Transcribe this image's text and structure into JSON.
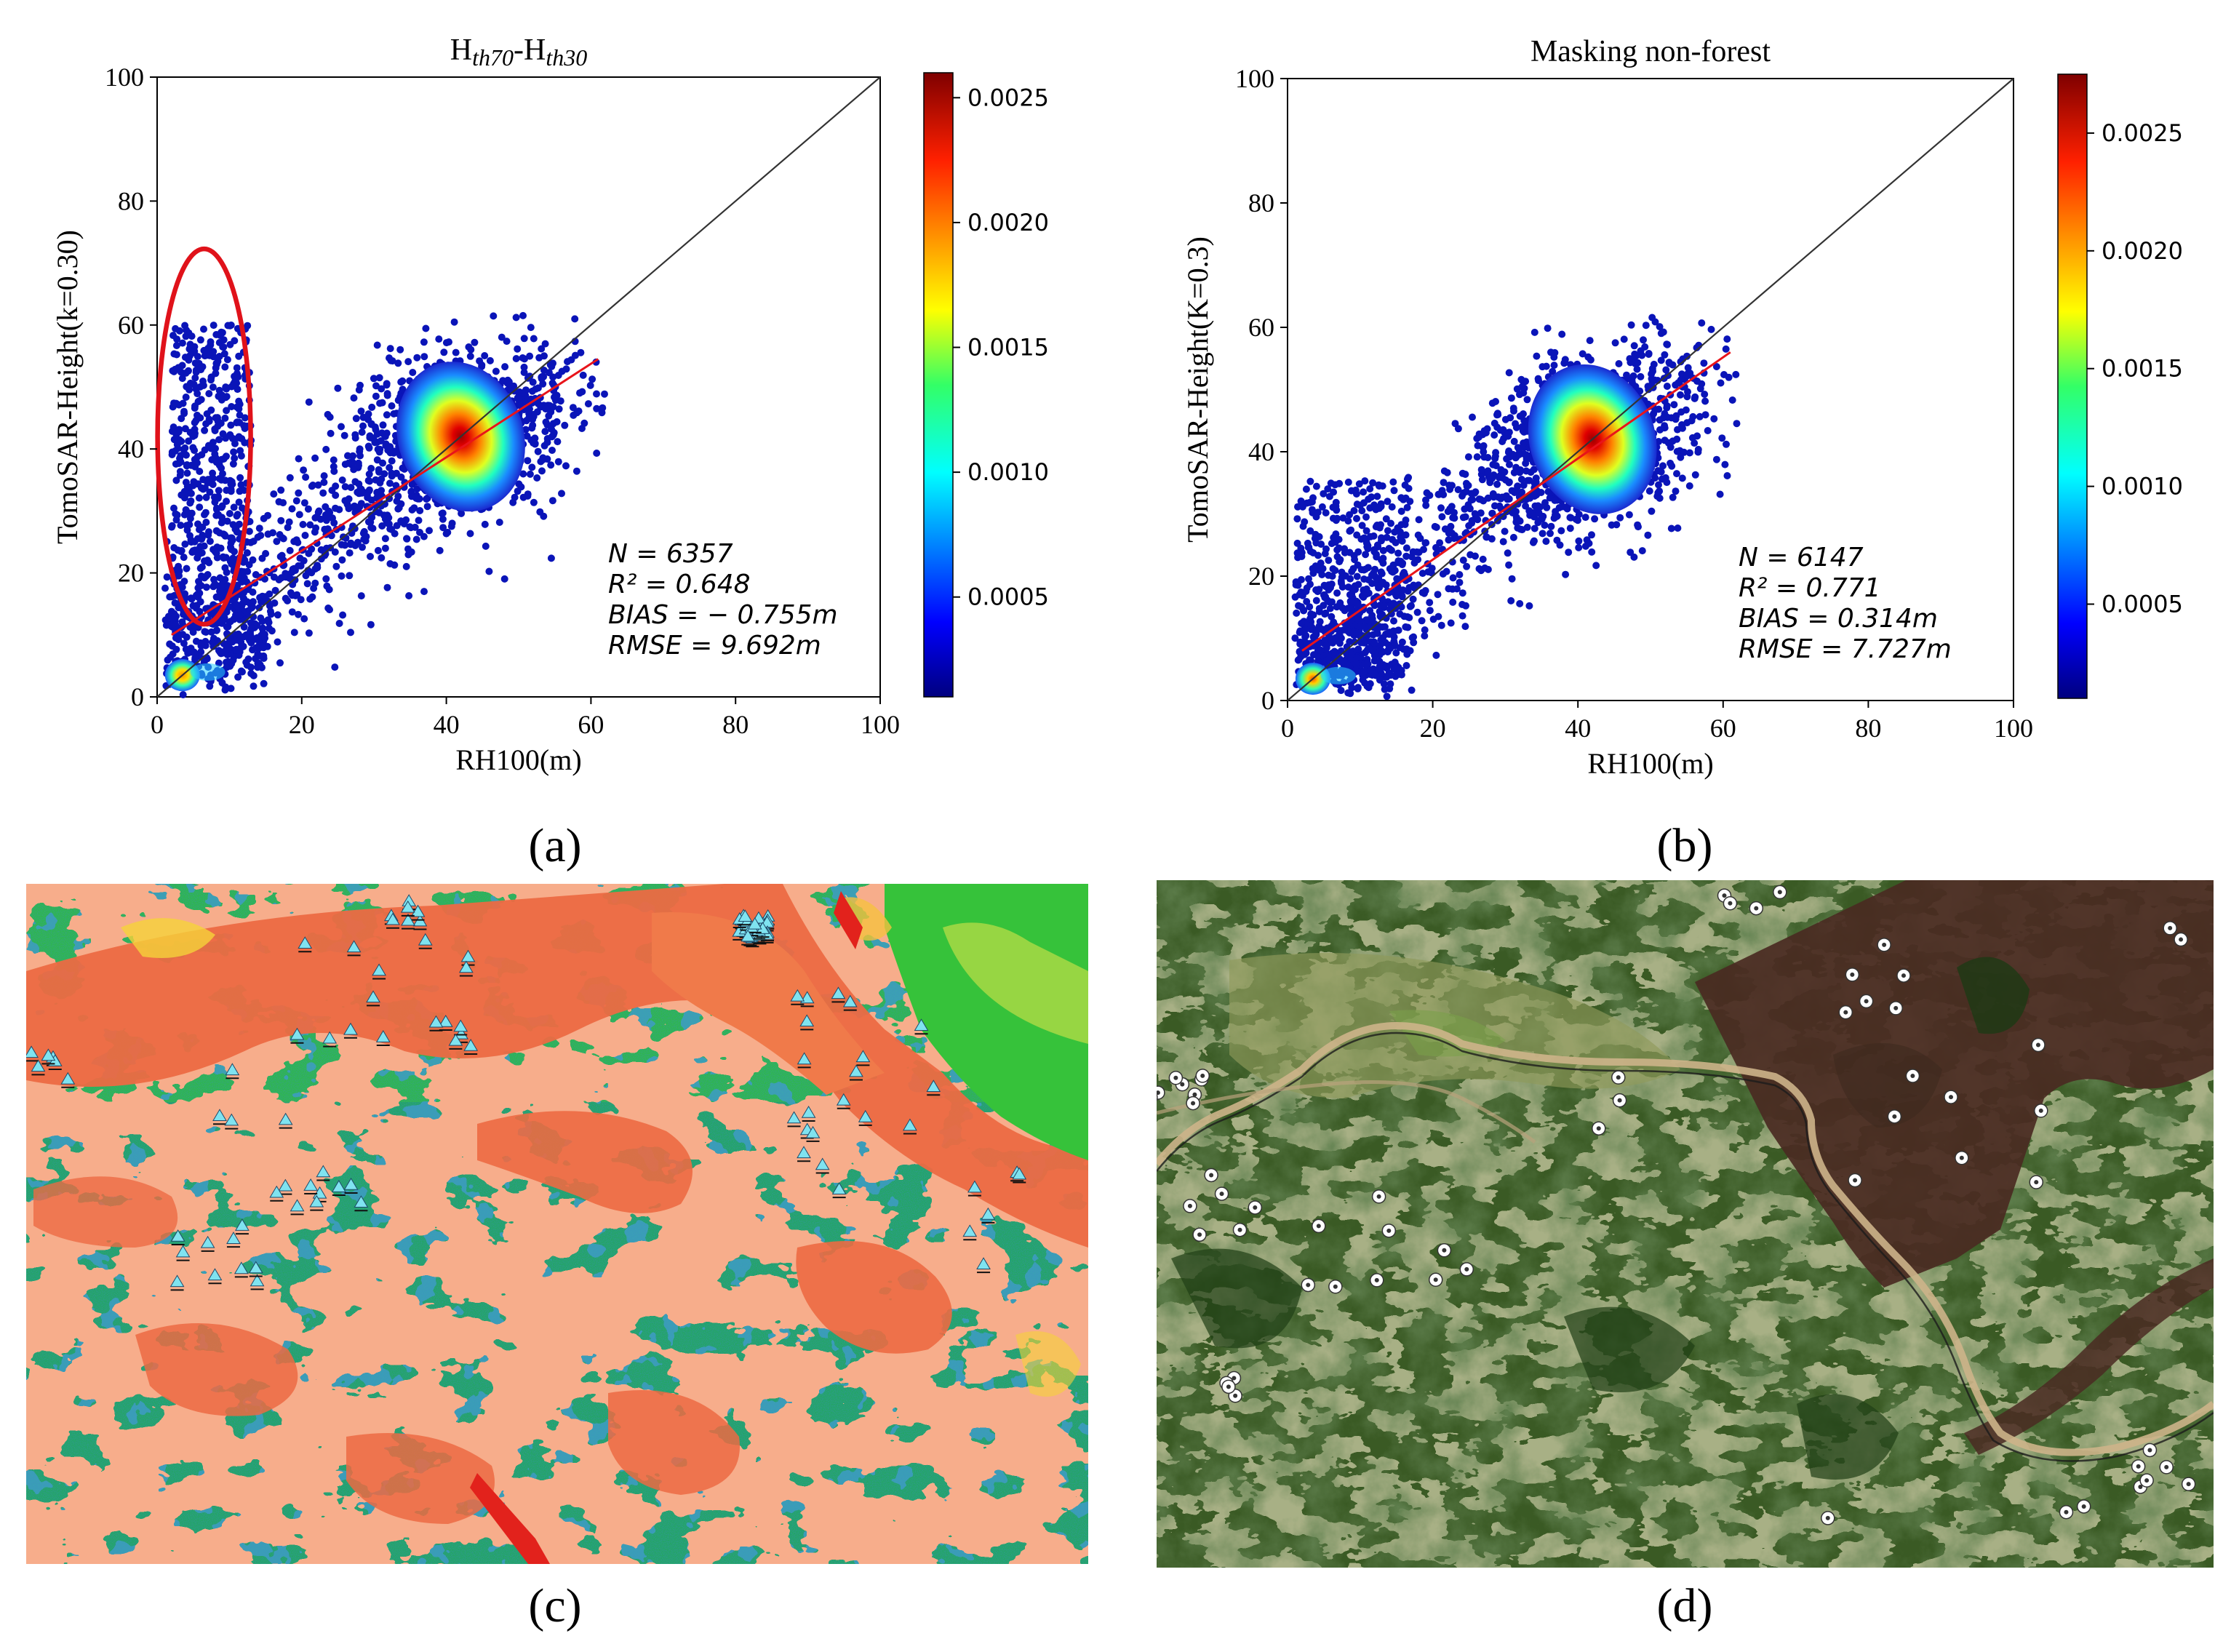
{
  "figure": {
    "sublabels": [
      "(a)",
      "(b)",
      "(c)",
      "(d)"
    ]
  },
  "chart_data": [
    {
      "type": "scatter",
      "panel": "a",
      "title": "Hth70-Hth30",
      "title_main_1": "H",
      "title_sub_1": "th70",
      "title_dash": "-H",
      "title_sub_2": "th30",
      "xlabel": "RH100(m)",
      "ylabel": "TomoSAR-Height(k=0.30)",
      "xlim": [
        0,
        100
      ],
      "ylim": [
        0,
        100
      ],
      "xticks": [
        "0",
        "20",
        "40",
        "60",
        "80",
        "100"
      ],
      "yticks": [
        "0",
        "20",
        "40",
        "60",
        "80",
        "100"
      ],
      "colorbar_ticks": [
        "0.0005",
        "0.0010",
        "0.0015",
        "0.0020",
        "0.0025"
      ],
      "colorbar_values": [
        0.0005,
        0.001,
        0.0015,
        0.002,
        0.0025
      ],
      "colorbar_range": [
        0.0001,
        0.0026
      ],
      "cluster_center": [
        42,
        42
      ],
      "fit_line": [
        [
          2,
          10
        ],
        [
          61,
          54.5
        ]
      ],
      "one_to_one": [
        [
          0,
          0
        ],
        [
          100,
          100
        ]
      ],
      "has_outlier_ellipse": true,
      "stats": {
        "n": "N = 6357",
        "r2": "R² = 0.648",
        "bias": "BIAS = − 0.755m",
        "rmse": "RMSE = 9.692m"
      }
    },
    {
      "type": "scatter",
      "panel": "b",
      "title": "Masking non-forest",
      "xlabel": "RH100(m)",
      "ylabel": "TomoSAR-Height(K=0.3)",
      "xlim": [
        0,
        100
      ],
      "ylim": [
        0,
        100
      ],
      "xticks": [
        "0",
        "20",
        "40",
        "60",
        "80",
        "100"
      ],
      "yticks": [
        "0",
        "20",
        "40",
        "60",
        "80",
        "100"
      ],
      "colorbar_ticks": [
        "0.0005",
        "0.0010",
        "0.0015",
        "0.0020",
        "0.0025"
      ],
      "colorbar_values": [
        0.0005,
        0.001,
        0.0015,
        0.002,
        0.0025
      ],
      "colorbar_range": [
        0.0001,
        0.00275
      ],
      "cluster_center": [
        42,
        42
      ],
      "fit_line": [
        [
          2,
          8
        ],
        [
          61,
          56
        ]
      ],
      "one_to_one": [
        [
          0,
          0
        ],
        [
          100,
          100
        ]
      ],
      "has_outlier_ellipse": false,
      "stats": {
        "n": "N = 6147",
        "r2": "R² = 0.771",
        "bias": "BIAS = 0.314m",
        "rmse": "RMSE = 7.727m"
      }
    }
  ],
  "panels": {
    "c": {
      "kind": "height classification map with triangle sample markers",
      "marker_count": 70
    },
    "d": {
      "kind": "satellite image with circular plot markers",
      "marker_count": 60
    }
  },
  "colors": {
    "fit_line": "#e8141a",
    "one_to_one": "#333333",
    "outlier_ellipse": "#e0121a",
    "triangle": "#7fe3f0",
    "circle_marker": "#ffffff"
  }
}
